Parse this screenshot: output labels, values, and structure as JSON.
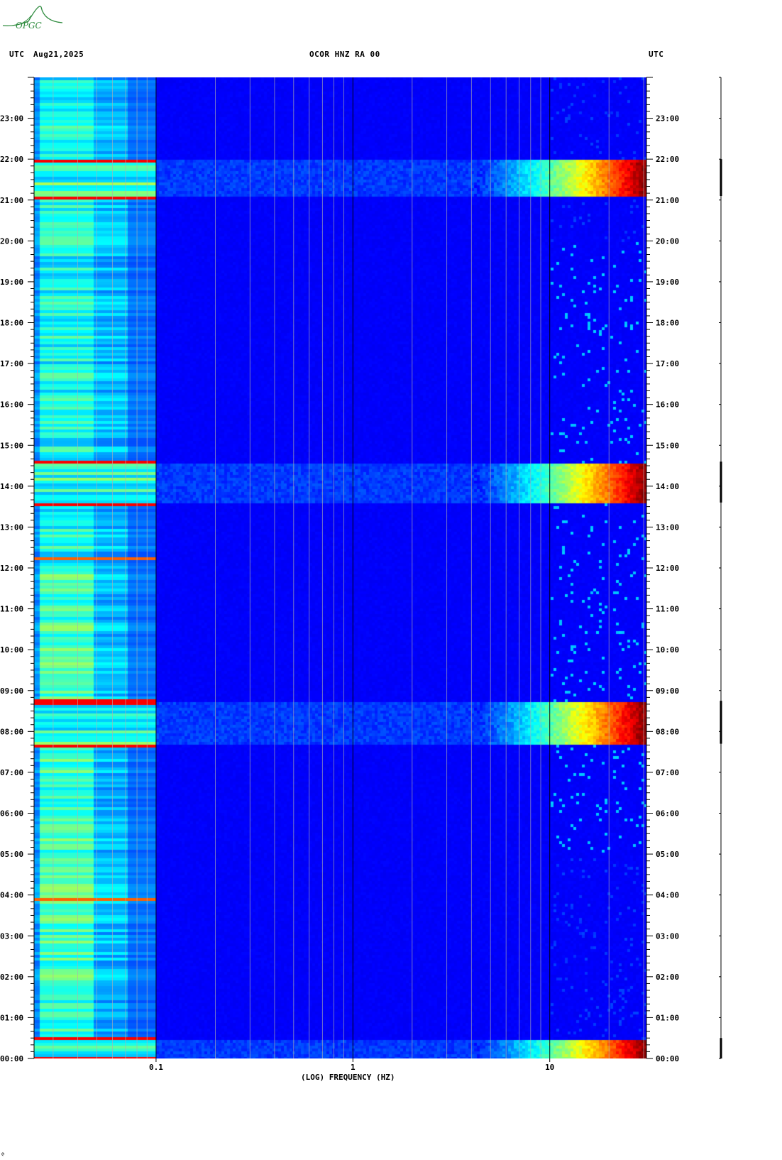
{
  "header": {
    "left_utc": "UTC",
    "date": "Aug21,2025",
    "station": "OCOR HNZ RA 00",
    "right_utc": "UTC"
  },
  "logo": {
    "text": "OPGC",
    "color": "#2e8b3e"
  },
  "chart_data": {
    "type": "heatmap",
    "description_kind": "spectrogram",
    "xlabel": "(LOG) FREQUENCY (HZ)",
    "x_scale": "log",
    "xlim": [
      0.024,
      31
    ],
    "x_ticks": [
      {
        "value": 0.1,
        "label": "0.1"
      },
      {
        "value": 1,
        "label": "1"
      },
      {
        "value": 10,
        "label": "10"
      }
    ],
    "y_ticks": [
      "00:00",
      "01:00",
      "02:00",
      "03:00",
      "04:00",
      "05:00",
      "06:00",
      "07:00",
      "08:00",
      "09:00",
      "10:00",
      "11:00",
      "12:00",
      "13:00",
      "14:00",
      "15:00",
      "16:00",
      "17:00",
      "18:00",
      "19:00",
      "20:00",
      "21:00",
      "22:00",
      "23:00"
    ],
    "ylim_hours": [
      0,
      24
    ],
    "events_utc_hours": [
      {
        "start": 21.1,
        "end": 22.0
      },
      {
        "start": 13.6,
        "end": 14.6
      },
      {
        "start": 7.7,
        "end": 8.75
      },
      {
        "start": 0.0,
        "end": 0.5
      }
    ],
    "isolated_lines_utc_hours": [
      3.95,
      12.25
    ],
    "colormap": [
      "#00008f",
      "#0000ff",
      "#0080ff",
      "#00ffff",
      "#80ff80",
      "#ffff00",
      "#ff8000",
      "#ff0000",
      "#800000"
    ]
  }
}
